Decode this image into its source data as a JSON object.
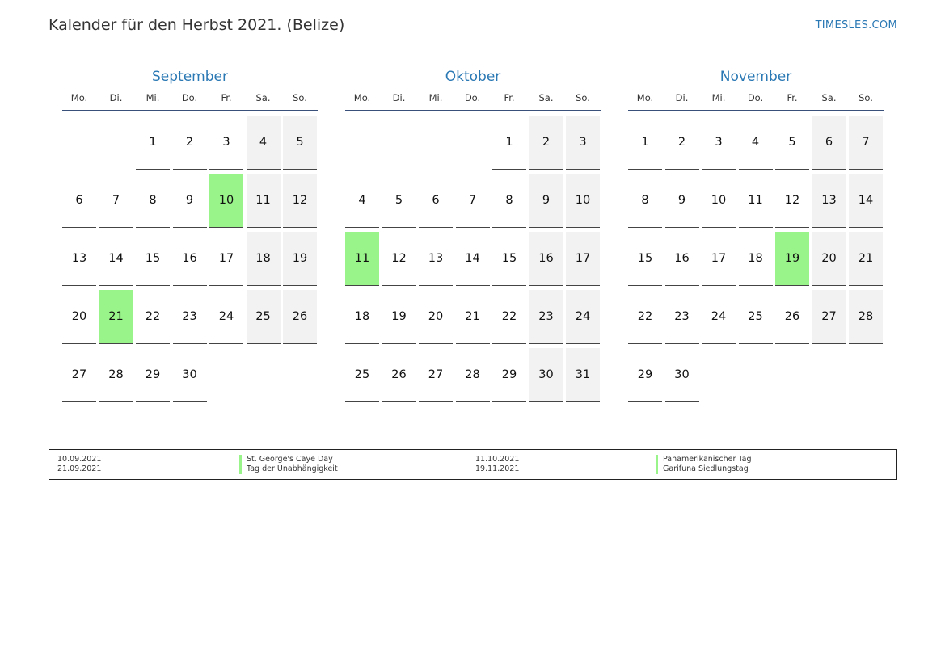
{
  "header": {
    "title": "Kalender für den Herbst 2021. (Belize)",
    "site": "TIMESLES.COM"
  },
  "weekday_labels": [
    "Mo.",
    "Di.",
    "Mi.",
    "Do.",
    "Fr.",
    "Sa.",
    "So."
  ],
  "months": [
    {
      "name": "September",
      "weeks": [
        [
          "",
          "",
          "1",
          "2",
          "3",
          "4",
          "5"
        ],
        [
          "6",
          "7",
          "8",
          "9",
          "10",
          "11",
          "12"
        ],
        [
          "13",
          "14",
          "15",
          "16",
          "17",
          "18",
          "19"
        ],
        [
          "20",
          "21",
          "22",
          "23",
          "24",
          "25",
          "26"
        ],
        [
          "27",
          "28",
          "29",
          "30",
          "",
          "",
          ""
        ]
      ],
      "holidays": [
        "10",
        "21"
      ]
    },
    {
      "name": "Oktober",
      "weeks": [
        [
          "",
          "",
          "",
          "",
          "1",
          "2",
          "3"
        ],
        [
          "4",
          "5",
          "6",
          "7",
          "8",
          "9",
          "10"
        ],
        [
          "11",
          "12",
          "13",
          "14",
          "15",
          "16",
          "17"
        ],
        [
          "18",
          "19",
          "20",
          "21",
          "22",
          "23",
          "24"
        ],
        [
          "25",
          "26",
          "27",
          "28",
          "29",
          "30",
          "31"
        ]
      ],
      "holidays": [
        "11"
      ]
    },
    {
      "name": "November",
      "weeks": [
        [
          "1",
          "2",
          "3",
          "4",
          "5",
          "6",
          "7"
        ],
        [
          "8",
          "9",
          "10",
          "11",
          "12",
          "13",
          "14"
        ],
        [
          "15",
          "16",
          "17",
          "18",
          "19",
          "20",
          "21"
        ],
        [
          "22",
          "23",
          "24",
          "25",
          "26",
          "27",
          "28"
        ],
        [
          "29",
          "30",
          "",
          "",
          "",
          "",
          ""
        ]
      ],
      "holidays": [
        "19"
      ]
    }
  ],
  "legend": [
    {
      "date": "10.09.2021",
      "name": "St. George's Caye Day"
    },
    {
      "date": "21.09.2021",
      "name": "Tag der Unabhängigkeit"
    },
    {
      "date": "11.10.2021",
      "name": "Panamerikanischer Tag"
    },
    {
      "date": "19.11.2021",
      "name": "Garifuna Siedlungstag"
    }
  ],
  "colors": {
    "accent": "#2a78b4",
    "holiday": "#99f58a",
    "weekend": "#f2f2f2",
    "header_rule": "#38507a"
  }
}
